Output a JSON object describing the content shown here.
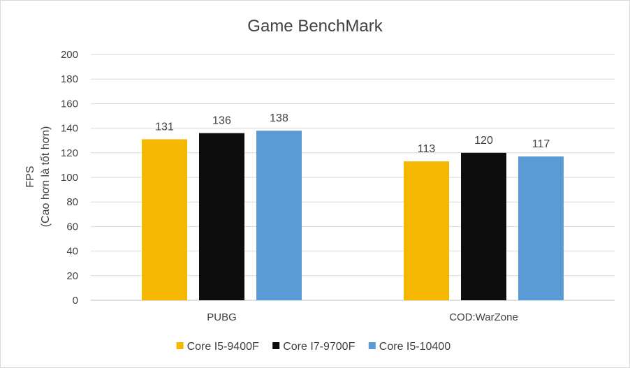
{
  "chart_data": {
    "type": "bar",
    "title": "Game BenchMark",
    "ylabel_line1": "FPS",
    "ylabel_line2": "(Cao hơn là tốt hơn)",
    "xlabel": "",
    "ylim": [
      0,
      200
    ],
    "ytick_step": 20,
    "grid": true,
    "legend_position": "bottom",
    "categories": [
      "PUBG",
      "COD:WarZone"
    ],
    "series": [
      {
        "name": "Core I5-9400F",
        "color": "#f5b800",
        "values": [
          131,
          113
        ]
      },
      {
        "name": "Core I7-9700F",
        "color": "#0d0d0d",
        "values": [
          136,
          120
        ]
      },
      {
        "name": "Core I5-10400",
        "color": "#5b9bd5",
        "values": [
          138,
          117
        ]
      }
    ]
  }
}
